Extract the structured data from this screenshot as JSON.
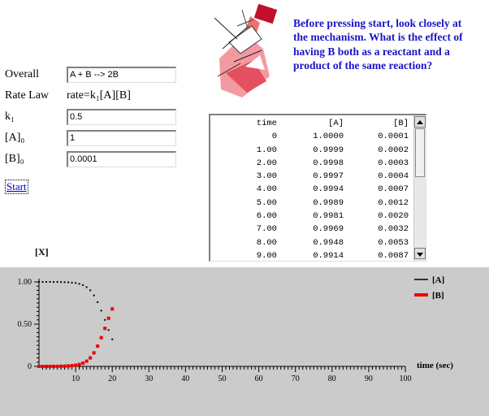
{
  "question": "Before pressing start, look closely at the mechanism. What is the effect of having B both as a reactant and a product of the same reaction?",
  "form": {
    "overall_label": "Overall",
    "overall_value": "A + B --> 2B",
    "ratelaw_label": "Rate Law",
    "ratelaw_value": "rate=k₁[A][B]",
    "k1_label": "k₁",
    "k1_value": "0.5",
    "a0_label": "[A]₀",
    "a0_value": "1",
    "b0_label": "[B]₀",
    "b0_value": "0.0001",
    "start_label": "Start"
  },
  "table": {
    "headers": [
      "time",
      "[A]",
      "[B]"
    ],
    "rows": [
      [
        "0",
        "1.0000",
        "0.0001"
      ],
      [
        "1.00",
        "0.9999",
        "0.0002"
      ],
      [
        "2.00",
        "0.9998",
        "0.0003"
      ],
      [
        "3.00",
        "0.9997",
        "0.0004"
      ],
      [
        "4.00",
        "0.9994",
        "0.0007"
      ],
      [
        "5.00",
        "0.9989",
        "0.0012"
      ],
      [
        "6.00",
        "0.9981",
        "0.0020"
      ],
      [
        "7.00",
        "0.9969",
        "0.0032"
      ],
      [
        "8.00",
        "0.9948",
        "0.0053"
      ],
      [
        "9.00",
        "0.9914",
        "0.0087"
      ]
    ]
  },
  "chart_data": {
    "type": "scatter",
    "ylabel": "[X]",
    "xlabel": "time (sec)",
    "xlim": [
      0,
      100
    ],
    "ylim": [
      0,
      1
    ],
    "x_ticks": [
      "10",
      "20",
      "30",
      "40",
      "50",
      "60",
      "70",
      "80",
      "90",
      "100"
    ],
    "y_ticks": [
      "0",
      "0.50",
      "1.00"
    ],
    "legend_position": "top-right",
    "series": [
      {
        "name": "[A]",
        "color": "#000000",
        "points": [
          [
            0,
            1.0
          ],
          [
            1,
            1.0
          ],
          [
            2,
            1.0
          ],
          [
            3,
            1.0
          ],
          [
            4,
            0.999
          ],
          [
            5,
            0.999
          ],
          [
            6,
            0.998
          ],
          [
            7,
            0.997
          ],
          [
            8,
            0.995
          ],
          [
            9,
            0.991
          ],
          [
            10,
            0.986
          ],
          [
            11,
            0.977
          ],
          [
            12,
            0.962
          ],
          [
            13,
            0.938
          ],
          [
            14,
            0.9
          ],
          [
            15,
            0.84
          ],
          [
            16,
            0.76
          ],
          [
            17,
            0.66
          ],
          [
            18,
            0.55
          ],
          [
            19,
            0.43
          ],
          [
            20,
            0.32
          ]
        ]
      },
      {
        "name": "[B]",
        "color": "#ee0000",
        "points": [
          [
            0,
            0.0001
          ],
          [
            1,
            0.0002
          ],
          [
            2,
            0.0003
          ],
          [
            3,
            0.0004
          ],
          [
            4,
            0.0007
          ],
          [
            5,
            0.0012
          ],
          [
            6,
            0.002
          ],
          [
            7,
            0.0032
          ],
          [
            8,
            0.0053
          ],
          [
            9,
            0.0087
          ],
          [
            10,
            0.014
          ],
          [
            11,
            0.023
          ],
          [
            12,
            0.038
          ],
          [
            13,
            0.062
          ],
          [
            14,
            0.1
          ],
          [
            15,
            0.16
          ],
          [
            16,
            0.24
          ],
          [
            17,
            0.34
          ],
          [
            18,
            0.45
          ],
          [
            19,
            0.57
          ],
          [
            20,
            0.68
          ]
        ]
      }
    ]
  },
  "colors": {
    "question": "#1a14c8",
    "plot_bg": "#cbcbcb",
    "series_B": "#ee0000"
  },
  "illustration": "stick-figure-drawing-icon"
}
